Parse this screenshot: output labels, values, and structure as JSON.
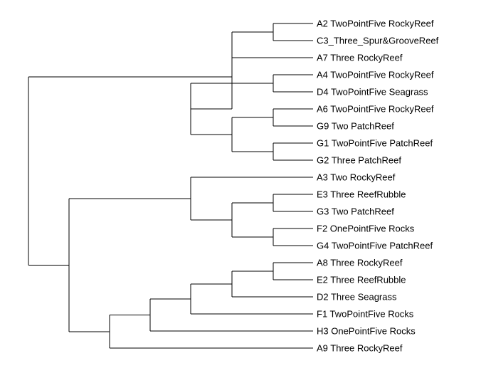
{
  "tree": {
    "id": "root",
    "children": [
      {
        "id": "c_upper",
        "children": [
          {
            "id": "c_a2c3a7",
            "children": [
              {
                "id": "c_a2c3",
                "children": [
                  {
                    "id": "A2"
                  },
                  {
                    "id": "C3"
                  }
                ]
              },
              {
                "id": "A7"
              }
            ]
          },
          {
            "id": "c_a4to_g2",
            "children": [
              {
                "id": "c_a4d4",
                "children": [
                  {
                    "id": "A4"
                  },
                  {
                    "id": "D4"
                  }
                ]
              },
              {
                "id": "c_a6g9g1g2",
                "children": [
                  {
                    "id": "c_a6g9",
                    "children": [
                      {
                        "id": "A6"
                      },
                      {
                        "id": "G9"
                      }
                    ]
                  },
                  {
                    "id": "c_g1g2",
                    "children": [
                      {
                        "id": "G1"
                      },
                      {
                        "id": "G2"
                      }
                    ]
                  }
                ]
              }
            ]
          }
        ]
      },
      {
        "id": "c_lower",
        "children": [
          {
            "id": "c_a3g4",
            "children": [
              {
                "id": "A3"
              },
              {
                "id": "c_e3g4",
                "children": [
                  {
                    "id": "c_e3g3",
                    "children": [
                      {
                        "id": "E3"
                      },
                      {
                        "id": "G3"
                      }
                    ]
                  },
                  {
                    "id": "c_f2g4",
                    "children": [
                      {
                        "id": "F2"
                      },
                      {
                        "id": "G4"
                      }
                    ]
                  }
                ]
              }
            ]
          },
          {
            "id": "c_a8a9",
            "children": [
              {
                "id": "c_a8h3",
                "children": [
                  {
                    "id": "c_a8f1",
                    "children": [
                      {
                        "id": "c_a8d2",
                        "children": [
                          {
                            "id": "c_a8e2",
                            "children": [
                              {
                                "id": "A8"
                              },
                              {
                                "id": "E2"
                              }
                            ]
                          },
                          {
                            "id": "D2"
                          }
                        ]
                      },
                      {
                        "id": "F1"
                      }
                    ]
                  },
                  {
                    "id": "H3"
                  }
                ]
              },
              {
                "id": "A9"
              }
            ]
          }
        ]
      }
    ]
  },
  "leaves": [
    {
      "id": "A2",
      "label": "A2 TwoPointFive RockyReef"
    },
    {
      "id": "C3",
      "label": "C3_Three_Spur&GrooveReef"
    },
    {
      "id": "A7",
      "label": "A7 Three RockyReef"
    },
    {
      "id": "A4",
      "label": "A4 TwoPointFive RockyReef"
    },
    {
      "id": "D4",
      "label": "D4 TwoPointFive Seagrass"
    },
    {
      "id": "A6",
      "label": "A6 TwoPointFive RockyReef"
    },
    {
      "id": "G9",
      "label": "G9 Two PatchReef"
    },
    {
      "id": "G1",
      "label": "G1 TwoPointFive PatchReef"
    },
    {
      "id": "G2",
      "label": "G2 Three PatchReef"
    },
    {
      "id": "A3",
      "label": "A3 Two RockyReef"
    },
    {
      "id": "E3",
      "label": "E3 Three ReefRubble"
    },
    {
      "id": "G3",
      "label": "G3 Two PatchReef"
    },
    {
      "id": "F2",
      "label": "F2 OnePointFive Rocks"
    },
    {
      "id": "G4",
      "label": "G4 TwoPointFive PatchReef"
    },
    {
      "id": "A8",
      "label": "A8 Three RockyReef"
    },
    {
      "id": "E2",
      "label": "E2 Three ReefRubble"
    },
    {
      "id": "D2",
      "label": "D2 Three Seagrass"
    },
    {
      "id": "F1",
      "label": "F1 TwoPointFive Rocks"
    },
    {
      "id": "H3",
      "label": "H3 OnePointFive Rocks"
    },
    {
      "id": "A9",
      "label": "A9 Three RockyReef"
    }
  ],
  "colors": {
    "line": "#000000",
    "text": "#000000",
    "background": "#ffffff"
  }
}
